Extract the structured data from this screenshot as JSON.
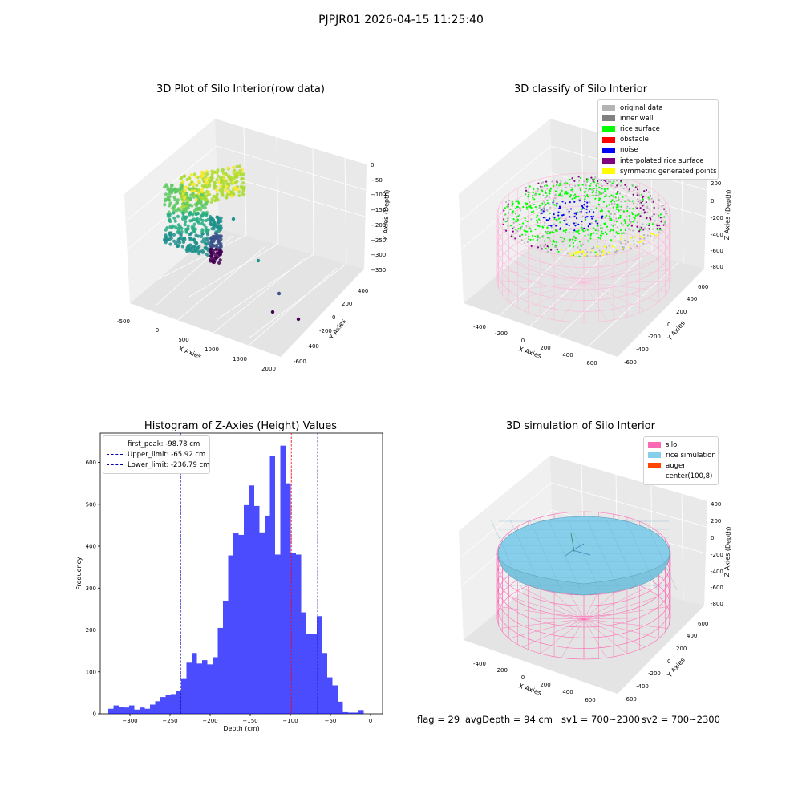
{
  "figure": {
    "suptitle": "PJPJR01 2026-04-15 11:25:40"
  },
  "panel_raw": {
    "title": "3D Plot of Silo Interior(row data)",
    "xlabel": "X Axies",
    "ylabel": "Y Axies",
    "zlabel": "Z Axies (Depth)",
    "x_ticks": [
      "-500",
      "0",
      "500",
      "1000",
      "1500",
      "2000"
    ],
    "y_ticks": [
      "-600",
      "-400",
      "-200",
      "0",
      "200",
      "400"
    ],
    "z_ticks": [
      "0",
      "−50",
      "−100",
      "−150",
      "−200",
      "−250",
      "−300",
      "−350"
    ]
  },
  "panel_classify": {
    "title": "3D classify of Silo Interior",
    "xlabel": "X Axies",
    "ylabel": "Y Axies",
    "zlabel": "Z Axies (Depth)",
    "x_ticks": [
      "-400",
      "-200",
      "0",
      "200",
      "400",
      "600"
    ],
    "y_ticks": [
      "-600",
      "-400",
      "-200",
      "0",
      "200",
      "400",
      "600"
    ],
    "z_ticks": [
      "200",
      "0",
      "-200",
      "-400",
      "-600",
      "-800"
    ],
    "legend": [
      {
        "label": "original data",
        "color": "#b4b4b4"
      },
      {
        "label": "inner wall",
        "color": "#808080"
      },
      {
        "label": "rice surface",
        "color": "#00ff00"
      },
      {
        "label": "obstacle",
        "color": "#ff0000"
      },
      {
        "label": "noise",
        "color": "#0000ff"
      },
      {
        "label": "interpolated rice surface",
        "color": "#800080"
      },
      {
        "label": "symmetric generated points",
        "color": "#ffff00"
      }
    ]
  },
  "panel_sim": {
    "title": "3D simulation of Silo Interior",
    "xlabel": "X Axies",
    "ylabel": "Y Axies",
    "zlabel": "Z Axies (Depth)",
    "x_ticks": [
      "-400",
      "-200",
      "0",
      "200",
      "400",
      "600"
    ],
    "y_ticks": [
      "-600",
      "-400",
      "-200",
      "0",
      "200",
      "400",
      "600"
    ],
    "z_ticks": [
      "400",
      "200",
      "0",
      "-200",
      "-400",
      "-600",
      "-800"
    ],
    "legend": [
      {
        "label": "silo",
        "color": "#ff69b4"
      },
      {
        "label": "rice simulation",
        "color": "#87ceeb"
      },
      {
        "label": "auger",
        "color": "#ff4500"
      },
      {
        "label": "center(100,8)",
        "color": "#ffffff"
      }
    ]
  },
  "status": {
    "flag": "flag = 29",
    "avg_depth": "avgDepth = 94 cm",
    "sv1": "sv1 = 700~2300",
    "sv2": "sv2 = 700~2300"
  },
  "chart_data": [
    {
      "type": "bar",
      "title": "Histogram of Z-Axies (Height) Values",
      "xlabel": "Depth (cm)",
      "ylabel": "Frequency",
      "xlim": [
        -337,
        15
      ],
      "ylim": [
        0,
        670
      ],
      "x_ticks": [
        -300,
        -250,
        -200,
        -150,
        -100,
        -50,
        0
      ],
      "y_ticks": [
        0,
        100,
        200,
        300,
        400,
        500,
        600
      ],
      "bar_color": "#0000ff",
      "bin_width": 6.5,
      "bin_start": -327,
      "values": [
        12,
        20,
        17,
        15,
        20,
        10,
        15,
        12,
        22,
        30,
        40,
        45,
        47,
        55,
        83,
        122,
        145,
        120,
        128,
        118,
        135,
        205,
        270,
        378,
        432,
        427,
        498,
        545,
        496,
        433,
        473,
        615,
        380,
        640,
        550,
        384,
        380,
        242,
        190,
        190,
        233,
        145,
        87,
        68,
        29,
        4,
        3,
        3,
        9
      ],
      "lines": [
        {
          "label": "first_peak: -98.78 cm",
          "x": -98.78,
          "color": "#ff0000"
        },
        {
          "label": "Upper_limit: -65.92 cm",
          "x": -65.92,
          "color": "#0000aa"
        },
        {
          "label": "Lower_limit: -236.79 cm",
          "x": -236.79,
          "color": "#0000aa"
        }
      ],
      "legend_position": "upper-left"
    }
  ]
}
